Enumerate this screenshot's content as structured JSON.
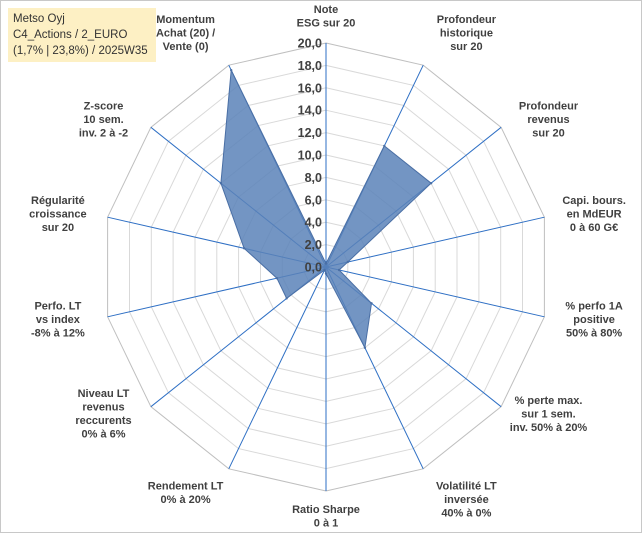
{
  "header": {
    "line1": "Metso Oyj",
    "line2": "C4_Actions / 2_EURO",
    "line3": "(1,7% | 23,8%) / 2025W35"
  },
  "chart_data": {
    "type": "radar",
    "rmin": 0,
    "rmax": 20,
    "step": 2,
    "tick_labels": [
      "0,0",
      "2,0",
      "4,0",
      "6,0",
      "8,0",
      "10,0",
      "12,0",
      "14,0",
      "16,0",
      "18,0",
      "20,0"
    ],
    "axes": [
      [
        "Note",
        "ESG sur 20"
      ],
      [
        "Profondeur",
        "historique",
        "sur 20"
      ],
      [
        "Profondeur",
        "revenus",
        "sur 20"
      ],
      [
        "Capi. bours.",
        "en MdEUR",
        "0 à 60 G€"
      ],
      [
        "% perfo 1A",
        "positive",
        "50% à 80%"
      ],
      [
        "% perte max.",
        "sur 1 sem.",
        "inv. 50% à 20%"
      ],
      [
        "Volatilité LT",
        "inversée",
        "40% à 0%"
      ],
      [
        "Ratio Sharpe",
        "0 à 1"
      ],
      [
        "Rendement LT",
        "0% à 20%"
      ],
      [
        "Niveau LT",
        "revenus",
        "reccurents",
        "0% à 6%"
      ],
      [
        "Perfo. LT",
        "vs index",
        "-8% à 12%"
      ],
      [
        "Régularité",
        "croissance",
        "sur 20"
      ],
      [
        "Z-score",
        "10 sem.",
        "inv. 2 à -2"
      ],
      [
        "Momentum",
        "Achat (20) /",
        "Vente (0)"
      ]
    ],
    "values": [
      0.3,
      12.0,
      12.0,
      2.0,
      1.2,
      5.2,
      8.0,
      0.6,
      0.3,
      4.5,
      4.5,
      7.5,
      12.0,
      19.5
    ],
    "colors": {
      "fill": "#5b82b8",
      "stroke": "#4a6fa5",
      "axis": "#2e6fc4",
      "grid": "#d9d9d9"
    }
  }
}
